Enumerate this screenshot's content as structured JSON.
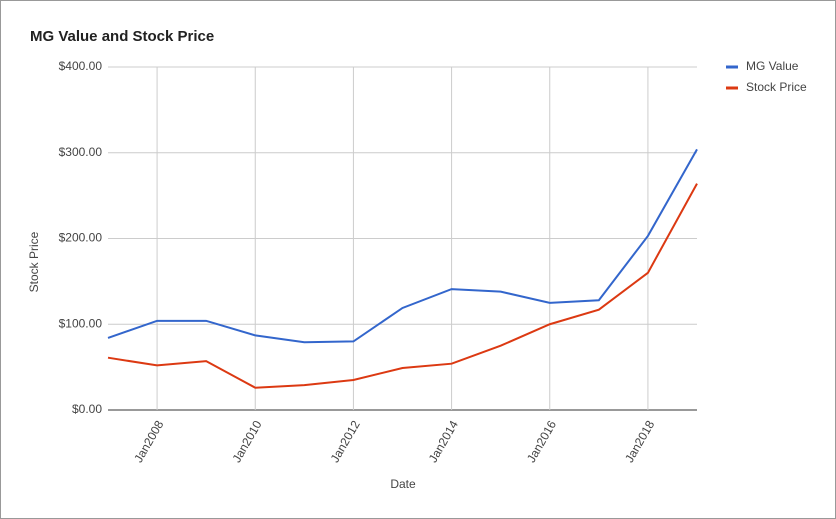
{
  "chart_data": {
    "type": "line",
    "title": "MG Value and Stock Price",
    "x_label": "Date",
    "y_label": "Stock Price",
    "x": [
      2007,
      2008,
      2009,
      2010,
      2011,
      2012,
      2013,
      2014,
      2015,
      2016,
      2017,
      2018,
      2019
    ],
    "xlim": [
      2007,
      2019
    ],
    "xticks": [
      {
        "value": 2008,
        "label": "Jan2008"
      },
      {
        "value": 2010,
        "label": "Jan2010"
      },
      {
        "value": 2012,
        "label": "Jan2012"
      },
      {
        "value": 2014,
        "label": "Jan2014"
      },
      {
        "value": 2016,
        "label": "Jan2016"
      },
      {
        "value": 2018,
        "label": "Jan2018"
      }
    ],
    "ylim": [
      0,
      400
    ],
    "yticks": [
      {
        "value": 0,
        "label": "$0.00"
      },
      {
        "value": 100,
        "label": "$100.00"
      },
      {
        "value": 200,
        "label": "$200.00"
      },
      {
        "value": 300,
        "label": "$300.00"
      },
      {
        "value": 400,
        "label": "$400.00"
      }
    ],
    "grid": true,
    "legend": "right",
    "series": [
      {
        "name": "MG Value",
        "color": "#3366cc",
        "values": [
          84,
          104,
          104,
          87,
          79,
          80,
          119,
          141,
          138,
          125,
          128,
          203,
          304
        ]
      },
      {
        "name": "Stock Price",
        "color": "#dc3912",
        "values": [
          61,
          52,
          57,
          26,
          29,
          35,
          49,
          54,
          75,
          100,
          117,
          160,
          264
        ]
      }
    ]
  }
}
